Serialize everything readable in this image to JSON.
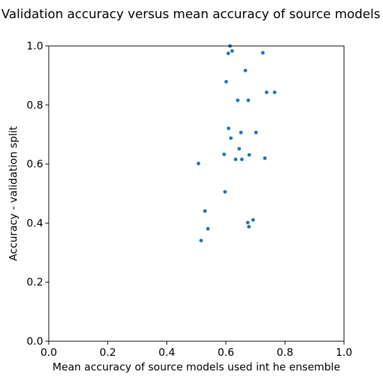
{
  "chart_data": {
    "type": "scatter",
    "title": "Validation accuracy versus mean accuracy of source models",
    "xlabel": "Mean accuracy of source models used int he ensemble",
    "ylabel": "Accuracy - validation split",
    "xlim": [
      0.0,
      1.0
    ],
    "ylim": [
      0.0,
      1.0
    ],
    "xticks": [
      "0.0",
      "0.2",
      "0.4",
      "0.6",
      "0.8",
      "1.0"
    ],
    "yticks": [
      "0.0",
      "0.2",
      "0.4",
      "0.6",
      "0.8",
      "1.0"
    ],
    "grid": false,
    "color": "#1f77b4",
    "points": [
      {
        "x": 0.614,
        "y": 1.0
      },
      {
        "x": 0.621,
        "y": 0.983
      },
      {
        "x": 0.608,
        "y": 0.975
      },
      {
        "x": 0.725,
        "y": 0.977
      },
      {
        "x": 0.666,
        "y": 0.917
      },
      {
        "x": 0.601,
        "y": 0.879
      },
      {
        "x": 0.738,
        "y": 0.843
      },
      {
        "x": 0.765,
        "y": 0.843
      },
      {
        "x": 0.64,
        "y": 0.816
      },
      {
        "x": 0.676,
        "y": 0.816
      },
      {
        "x": 0.609,
        "y": 0.721
      },
      {
        "x": 0.651,
        "y": 0.707
      },
      {
        "x": 0.702,
        "y": 0.707
      },
      {
        "x": 0.617,
        "y": 0.688
      },
      {
        "x": 0.645,
        "y": 0.652
      },
      {
        "x": 0.594,
        "y": 0.633
      },
      {
        "x": 0.679,
        "y": 0.631
      },
      {
        "x": 0.633,
        "y": 0.616
      },
      {
        "x": 0.654,
        "y": 0.616
      },
      {
        "x": 0.732,
        "y": 0.62
      },
      {
        "x": 0.507,
        "y": 0.602
      },
      {
        "x": 0.597,
        "y": 0.506
      },
      {
        "x": 0.529,
        "y": 0.441
      },
      {
        "x": 0.692,
        "y": 0.411
      },
      {
        "x": 0.674,
        "y": 0.402
      },
      {
        "x": 0.678,
        "y": 0.388
      },
      {
        "x": 0.539,
        "y": 0.381
      },
      {
        "x": 0.516,
        "y": 0.341
      }
    ]
  }
}
